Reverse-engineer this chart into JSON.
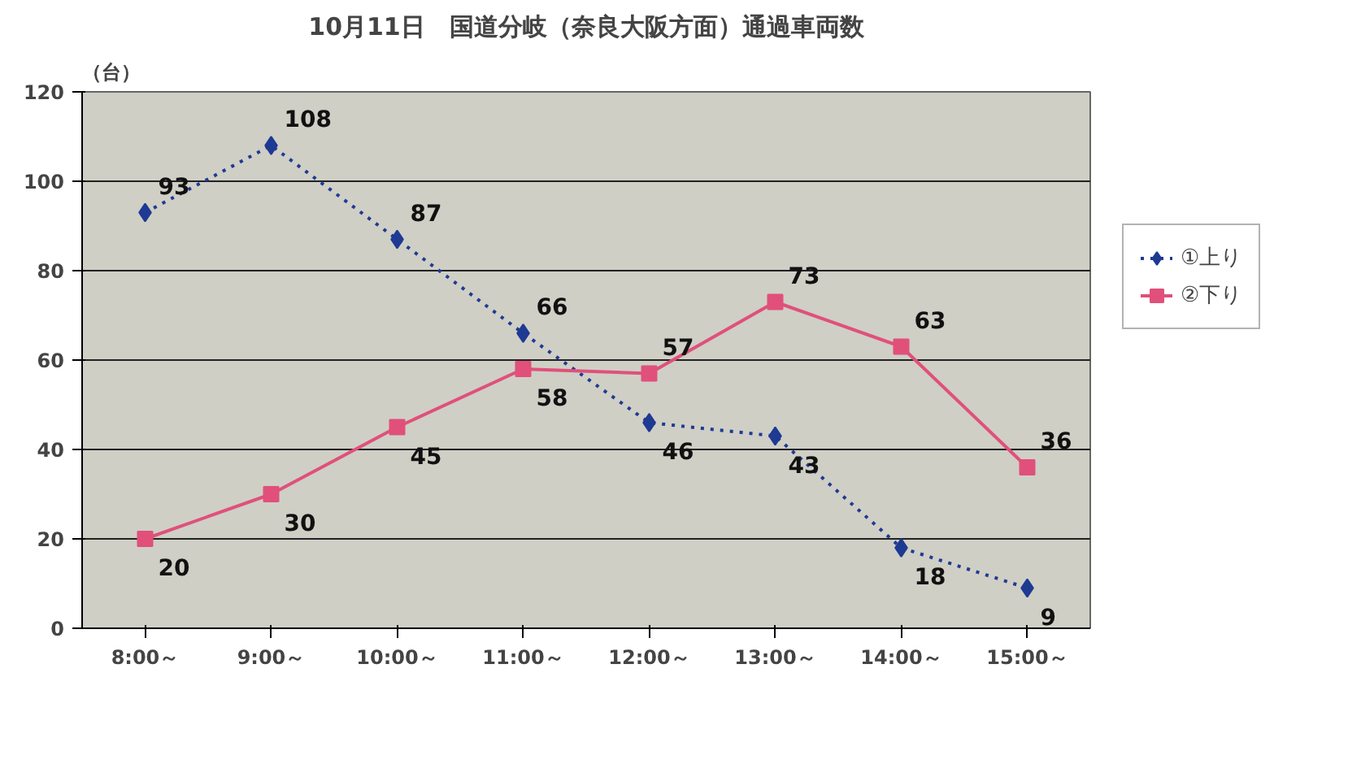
{
  "chart_data": {
    "type": "line",
    "title": "10月11日　国道分岐（奈良大阪方面）通過車両数",
    "ylabel": "（台）",
    "categories": [
      "8:00～",
      "9:00～",
      "10:00～",
      "11:00～",
      "12:00～",
      "13:00～",
      "14:00～",
      "15:00～"
    ],
    "series": [
      {
        "name": "①上り",
        "color": "#1f3a93",
        "marker": "diamond",
        "line_style": "dotted",
        "values": [
          93,
          108,
          87,
          66,
          46,
          43,
          18,
          9
        ]
      },
      {
        "name": "②下り",
        "color": "#e0507a",
        "marker": "square",
        "line_style": "solid",
        "values": [
          20,
          30,
          45,
          58,
          57,
          73,
          63,
          36
        ]
      }
    ],
    "ylim": [
      0,
      120
    ],
    "yticks": [
      0,
      20,
      40,
      60,
      80,
      100,
      120
    ],
    "grid": "y",
    "legend": "right",
    "data_labels": true
  }
}
